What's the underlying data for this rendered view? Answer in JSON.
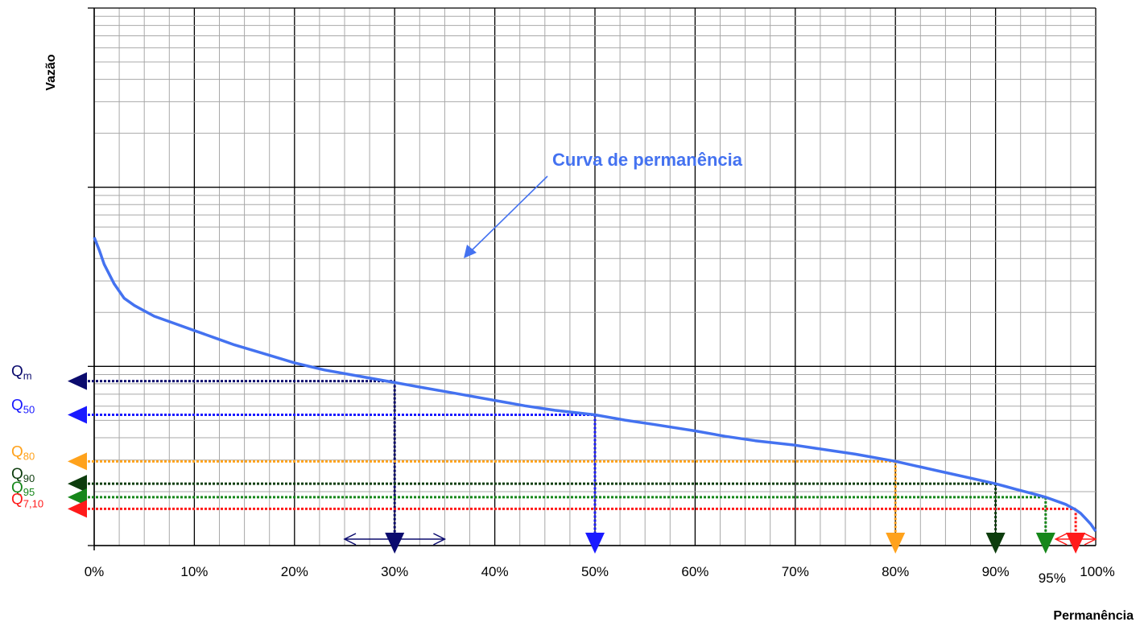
{
  "chart_data": {
    "type": "line",
    "xlabel": "Permanência",
    "ylabel": "Vazão",
    "x_ticks": [
      "0%",
      "10%",
      "20%",
      "30%",
      "40%",
      "50%",
      "60%",
      "70%",
      "80%",
      "90%",
      "95%",
      "100%"
    ],
    "x_tick_values": [
      0,
      10,
      20,
      30,
      40,
      50,
      60,
      70,
      80,
      90,
      95,
      100
    ],
    "xlim": [
      0,
      100
    ],
    "y_scale": "log",
    "y_decades": 3,
    "grid": true,
    "y_ticks_shown": false,
    "series": [
      {
        "color": "#4472f0",
        "x": [
          0,
          0.5,
          1,
          2,
          3,
          4,
          5,
          6,
          8,
          10,
          12,
          14,
          17,
          20,
          23,
          26,
          30,
          33,
          36,
          40,
          43,
          46,
          50,
          53,
          56,
          60,
          63,
          66,
          70,
          73,
          76,
          80,
          82,
          84,
          86,
          88,
          90,
          91,
          92,
          93,
          94,
          95,
          96,
          97,
          98,
          98.5,
          99,
          99.5,
          100
        ],
        "y": [
          1.72,
          1.65,
          1.57,
          1.46,
          1.38,
          1.34,
          1.31,
          1.28,
          1.24,
          1.2,
          1.16,
          1.12,
          1.07,
          1.02,
          0.98,
          0.95,
          0.91,
          0.88,
          0.85,
          0.81,
          0.78,
          0.755,
          0.73,
          0.7,
          0.675,
          0.64,
          0.61,
          0.585,
          0.56,
          0.535,
          0.51,
          0.47,
          0.445,
          0.42,
          0.395,
          0.37,
          0.345,
          0.33,
          0.315,
          0.3,
          0.285,
          0.27,
          0.25,
          0.23,
          0.2,
          0.18,
          0.15,
          0.12,
          0.08
        ]
      }
    ],
    "annotations": [
      {
        "label_main": "Curva de permanência",
        "label_sub": "",
        "type": "title",
        "color": "#4472f0"
      },
      {
        "label_main": "Q",
        "label_sub": "m",
        "type": "mean",
        "y": 0.918,
        "x": 30,
        "color": "#0b0b6e"
      },
      {
        "label_main": "Q",
        "label_sub": "50",
        "type": "quantile",
        "y": 0.73,
        "x": 50,
        "color": "#1a1aff"
      },
      {
        "label_main": "Q",
        "label_sub": "80",
        "type": "quantile",
        "y": 0.47,
        "x": 80,
        "color": "#ffa21c"
      },
      {
        "label_main": "Q",
        "label_sub": "90",
        "type": "quantile",
        "y": 0.345,
        "x": 90,
        "color": "#0e3d0e"
      },
      {
        "label_main": "Q",
        "label_sub": "95",
        "type": "quantile",
        "y": 0.27,
        "x": 95,
        "color": "#16871a"
      },
      {
        "label_main": "Q",
        "label_sub": "7,10",
        "type": "q710",
        "y": 0.205,
        "x": 98,
        "color": "#ff1a1a"
      }
    ],
    "ranges": [
      {
        "from": 25,
        "to": 35,
        "color": "#0b0b6e"
      },
      {
        "from": 96,
        "to": 100,
        "color": "#ff1a1a"
      }
    ]
  }
}
